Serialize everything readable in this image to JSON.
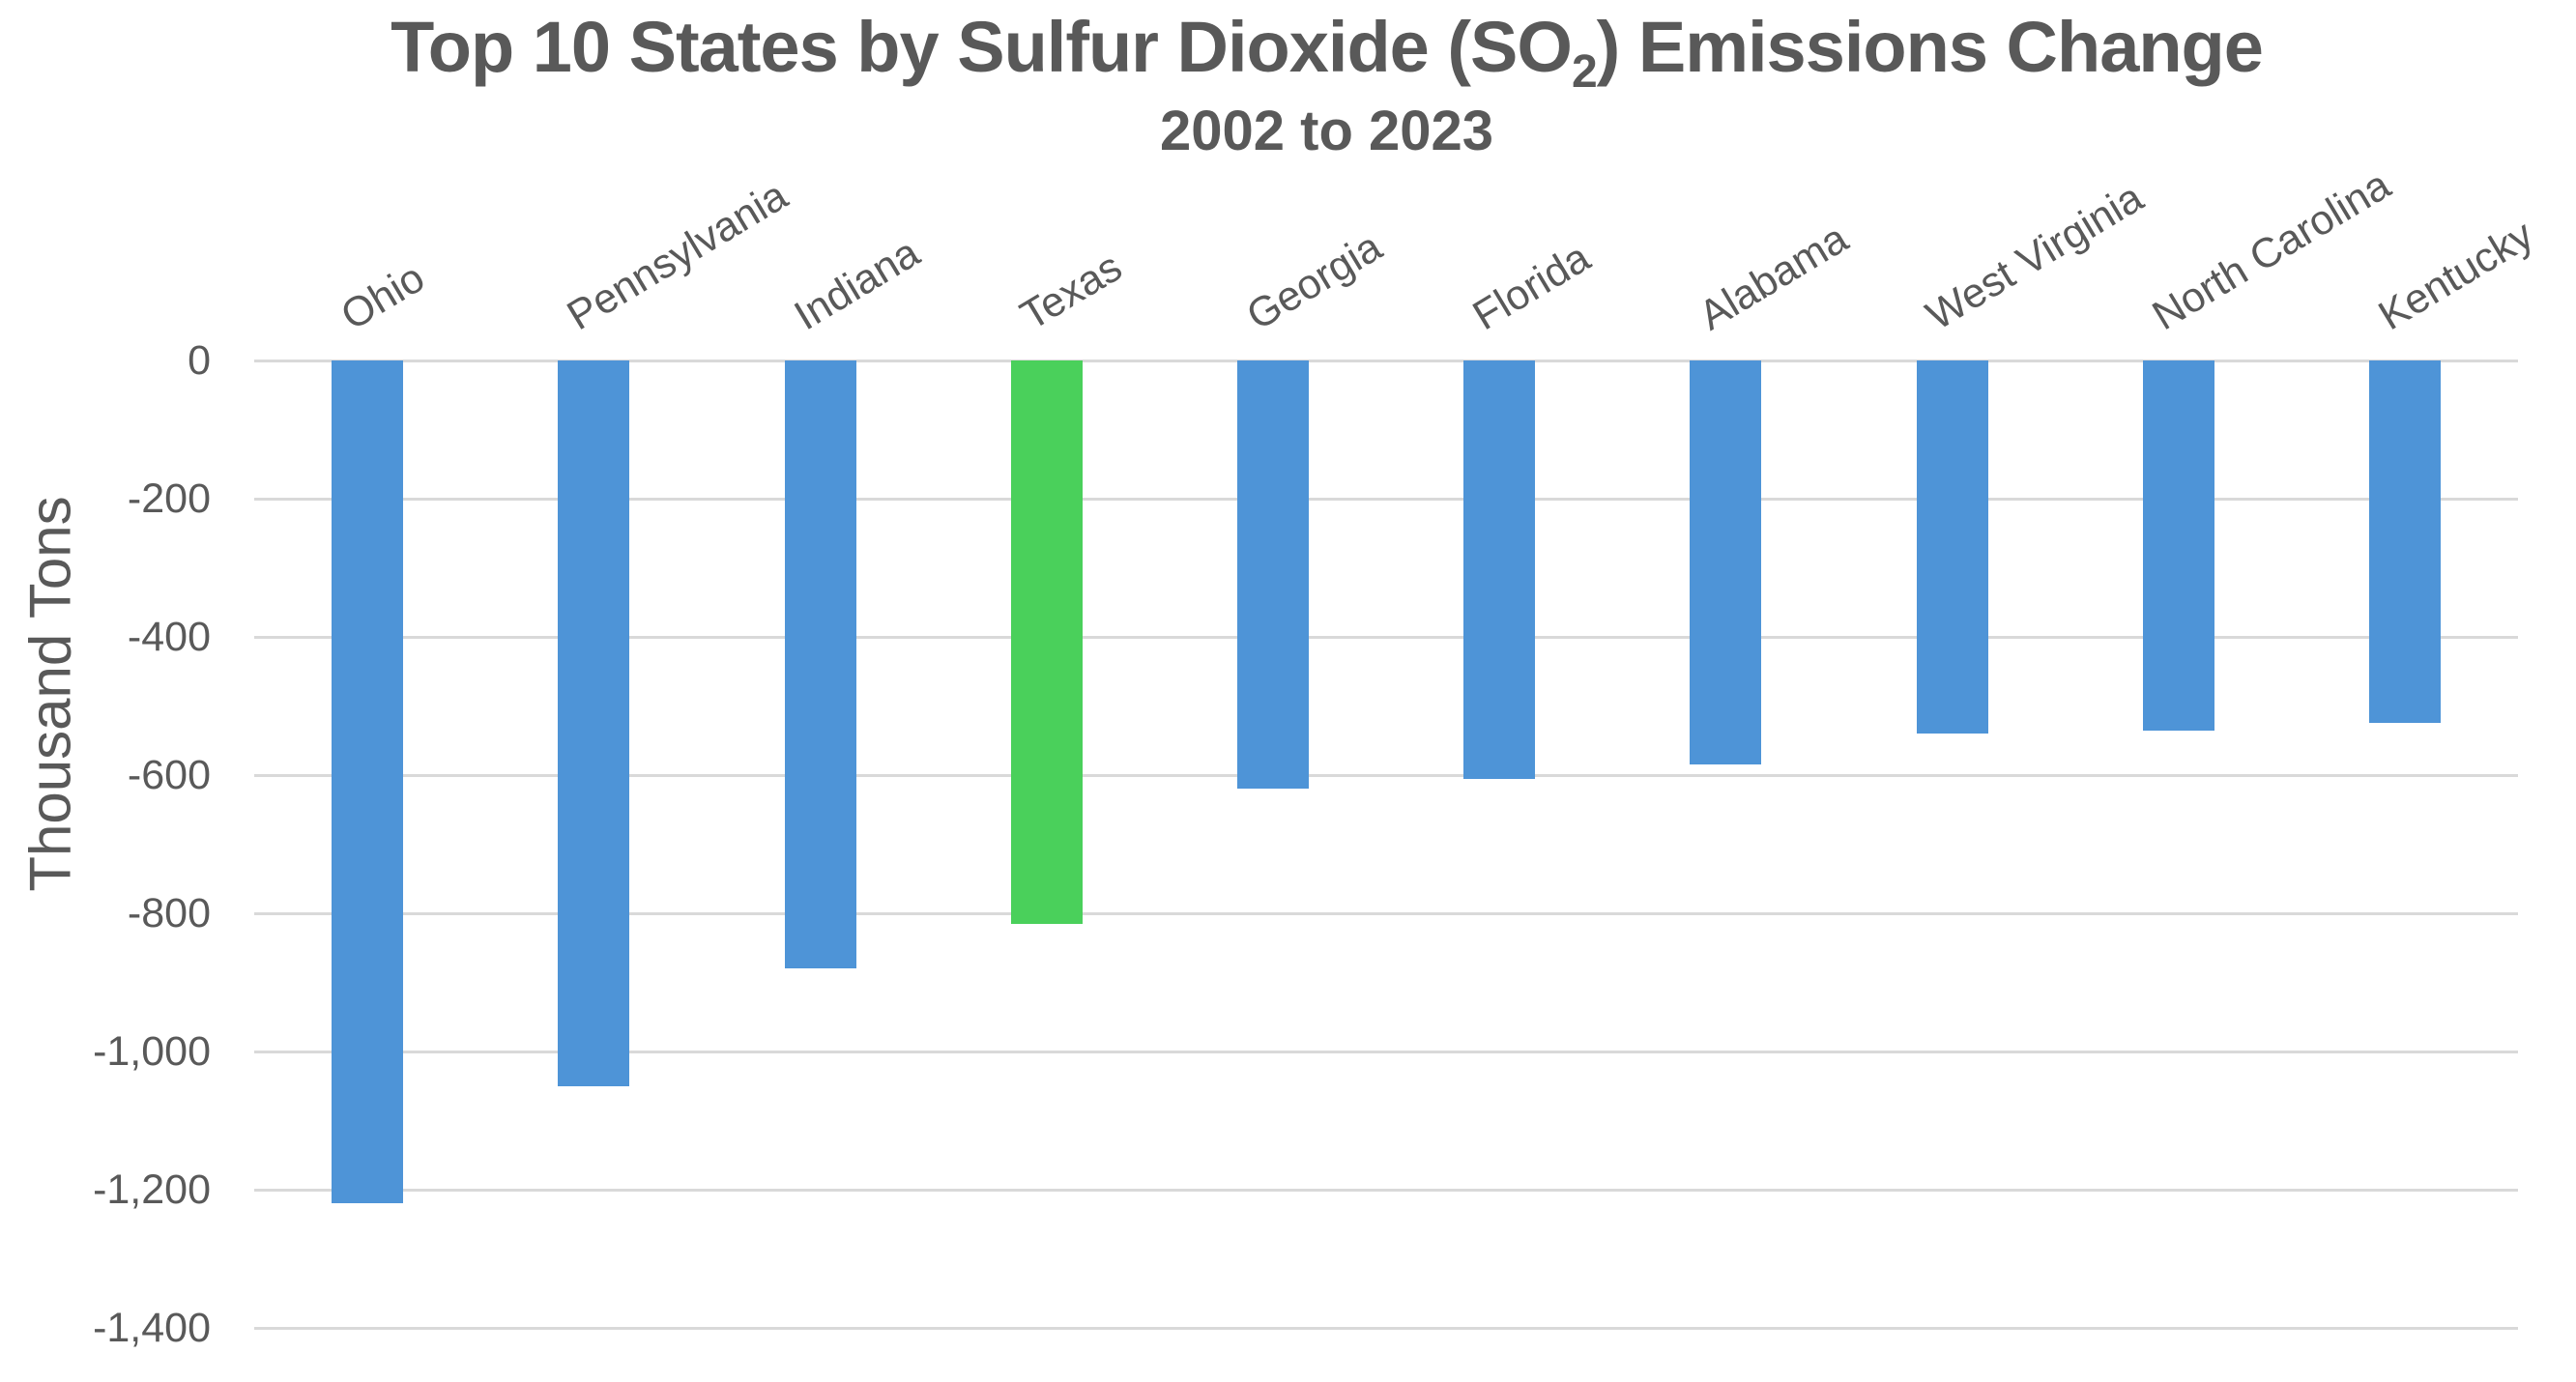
{
  "title": {
    "prefix": "Top 10 States by Sulfur Dioxide (SO",
    "subscript": "2",
    "suffix": ") Emissions Change"
  },
  "subtitle": "2002 to 2023",
  "chart_data": {
    "type": "bar",
    "title": "Top 10 States by Sulfur Dioxide (SO₂) Emissions Change",
    "subtitle": "2002 to 2023",
    "categories": [
      "Ohio",
      "Pennsylvania",
      "Indiana",
      "Texas",
      "Georgia",
      "Florida",
      "Alabama",
      "West Virginia",
      "North Carolina",
      "Kentucky"
    ],
    "values": [
      -1220,
      -1050,
      -880,
      -815,
      -620,
      -605,
      -585,
      -540,
      -535,
      -525
    ],
    "xlabel": "",
    "ylabel": "Thousand Tons",
    "ylim": [
      -1400,
      0
    ],
    "ytick_step": 200,
    "ytick_labels": [
      "0",
      "-200",
      "-400",
      "-600",
      "-800",
      "-1,000",
      "-1,200",
      "-1,400"
    ],
    "grid": true,
    "legend": false,
    "orientation": "vertical-negative",
    "category_label_rotation_deg": -31,
    "colors": {
      "bar_default": "#4E94D7",
      "bar_highlight": "#4AD05B",
      "highlight_index": 3,
      "text": "#595959",
      "gridline": "#D9D9D9",
      "background": "#FFFFFF"
    }
  }
}
